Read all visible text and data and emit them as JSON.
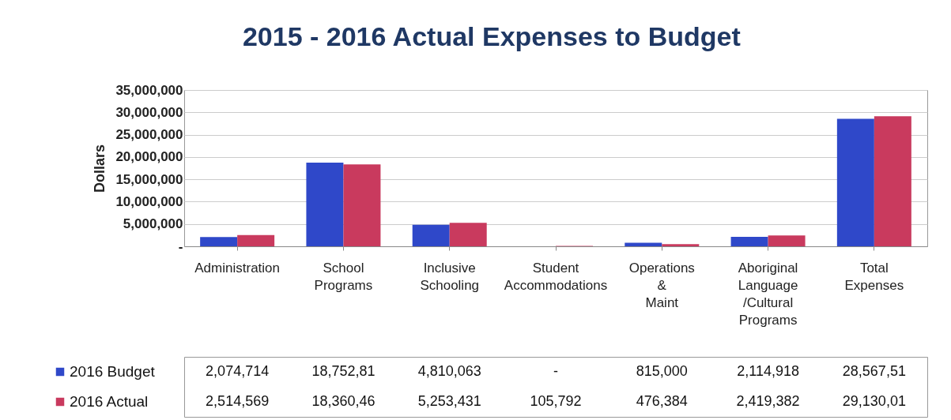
{
  "chart_data": {
    "type": "bar",
    "title": "2015 - 2016 Actual Expenses to Budget",
    "ylabel": "Dollars",
    "categories": [
      "Administration",
      "School Programs",
      "Inclusive Schooling",
      "Student Accommodations",
      "Operations & Maint",
      "Aboriginal Language /Cultural Programs",
      "Total Expenses"
    ],
    "series": [
      {
        "name": "2016 Budget",
        "color": "#2f48c9",
        "values": [
          2074714,
          18752810,
          4810063,
          0,
          815000,
          2114918,
          28567510
        ],
        "value_labels": [
          "2,074,714",
          "18,752,81",
          "4,810,063",
          "-",
          "815,000",
          "2,114,918",
          "28,567,51"
        ]
      },
      {
        "name": "2016 Actual",
        "color": "#c93a5e",
        "values": [
          2514569,
          18360460,
          5253431,
          105792,
          476384,
          2419382,
          29130010
        ],
        "value_labels": [
          "2,514,569",
          "18,360,46",
          "5,253,431",
          "105,792",
          "476,384",
          "2,419,382",
          "29,130,01"
        ]
      }
    ],
    "ylim": [
      0,
      35000000
    ],
    "yticks": [
      {
        "value": 0,
        "label": "-"
      },
      {
        "value": 5000000,
        "label": "5,000,000"
      },
      {
        "value": 10000000,
        "label": "10,000,000"
      },
      {
        "value": 15000000,
        "label": "15,000,000"
      },
      {
        "value": 20000000,
        "label": "20,000,000"
      },
      {
        "value": 25000000,
        "label": "25,000,000"
      },
      {
        "value": 30000000,
        "label": "30,000,000"
      },
      {
        "value": 35000000,
        "label": "35,000,000"
      }
    ],
    "grid": "y",
    "legend": "bottom"
  }
}
